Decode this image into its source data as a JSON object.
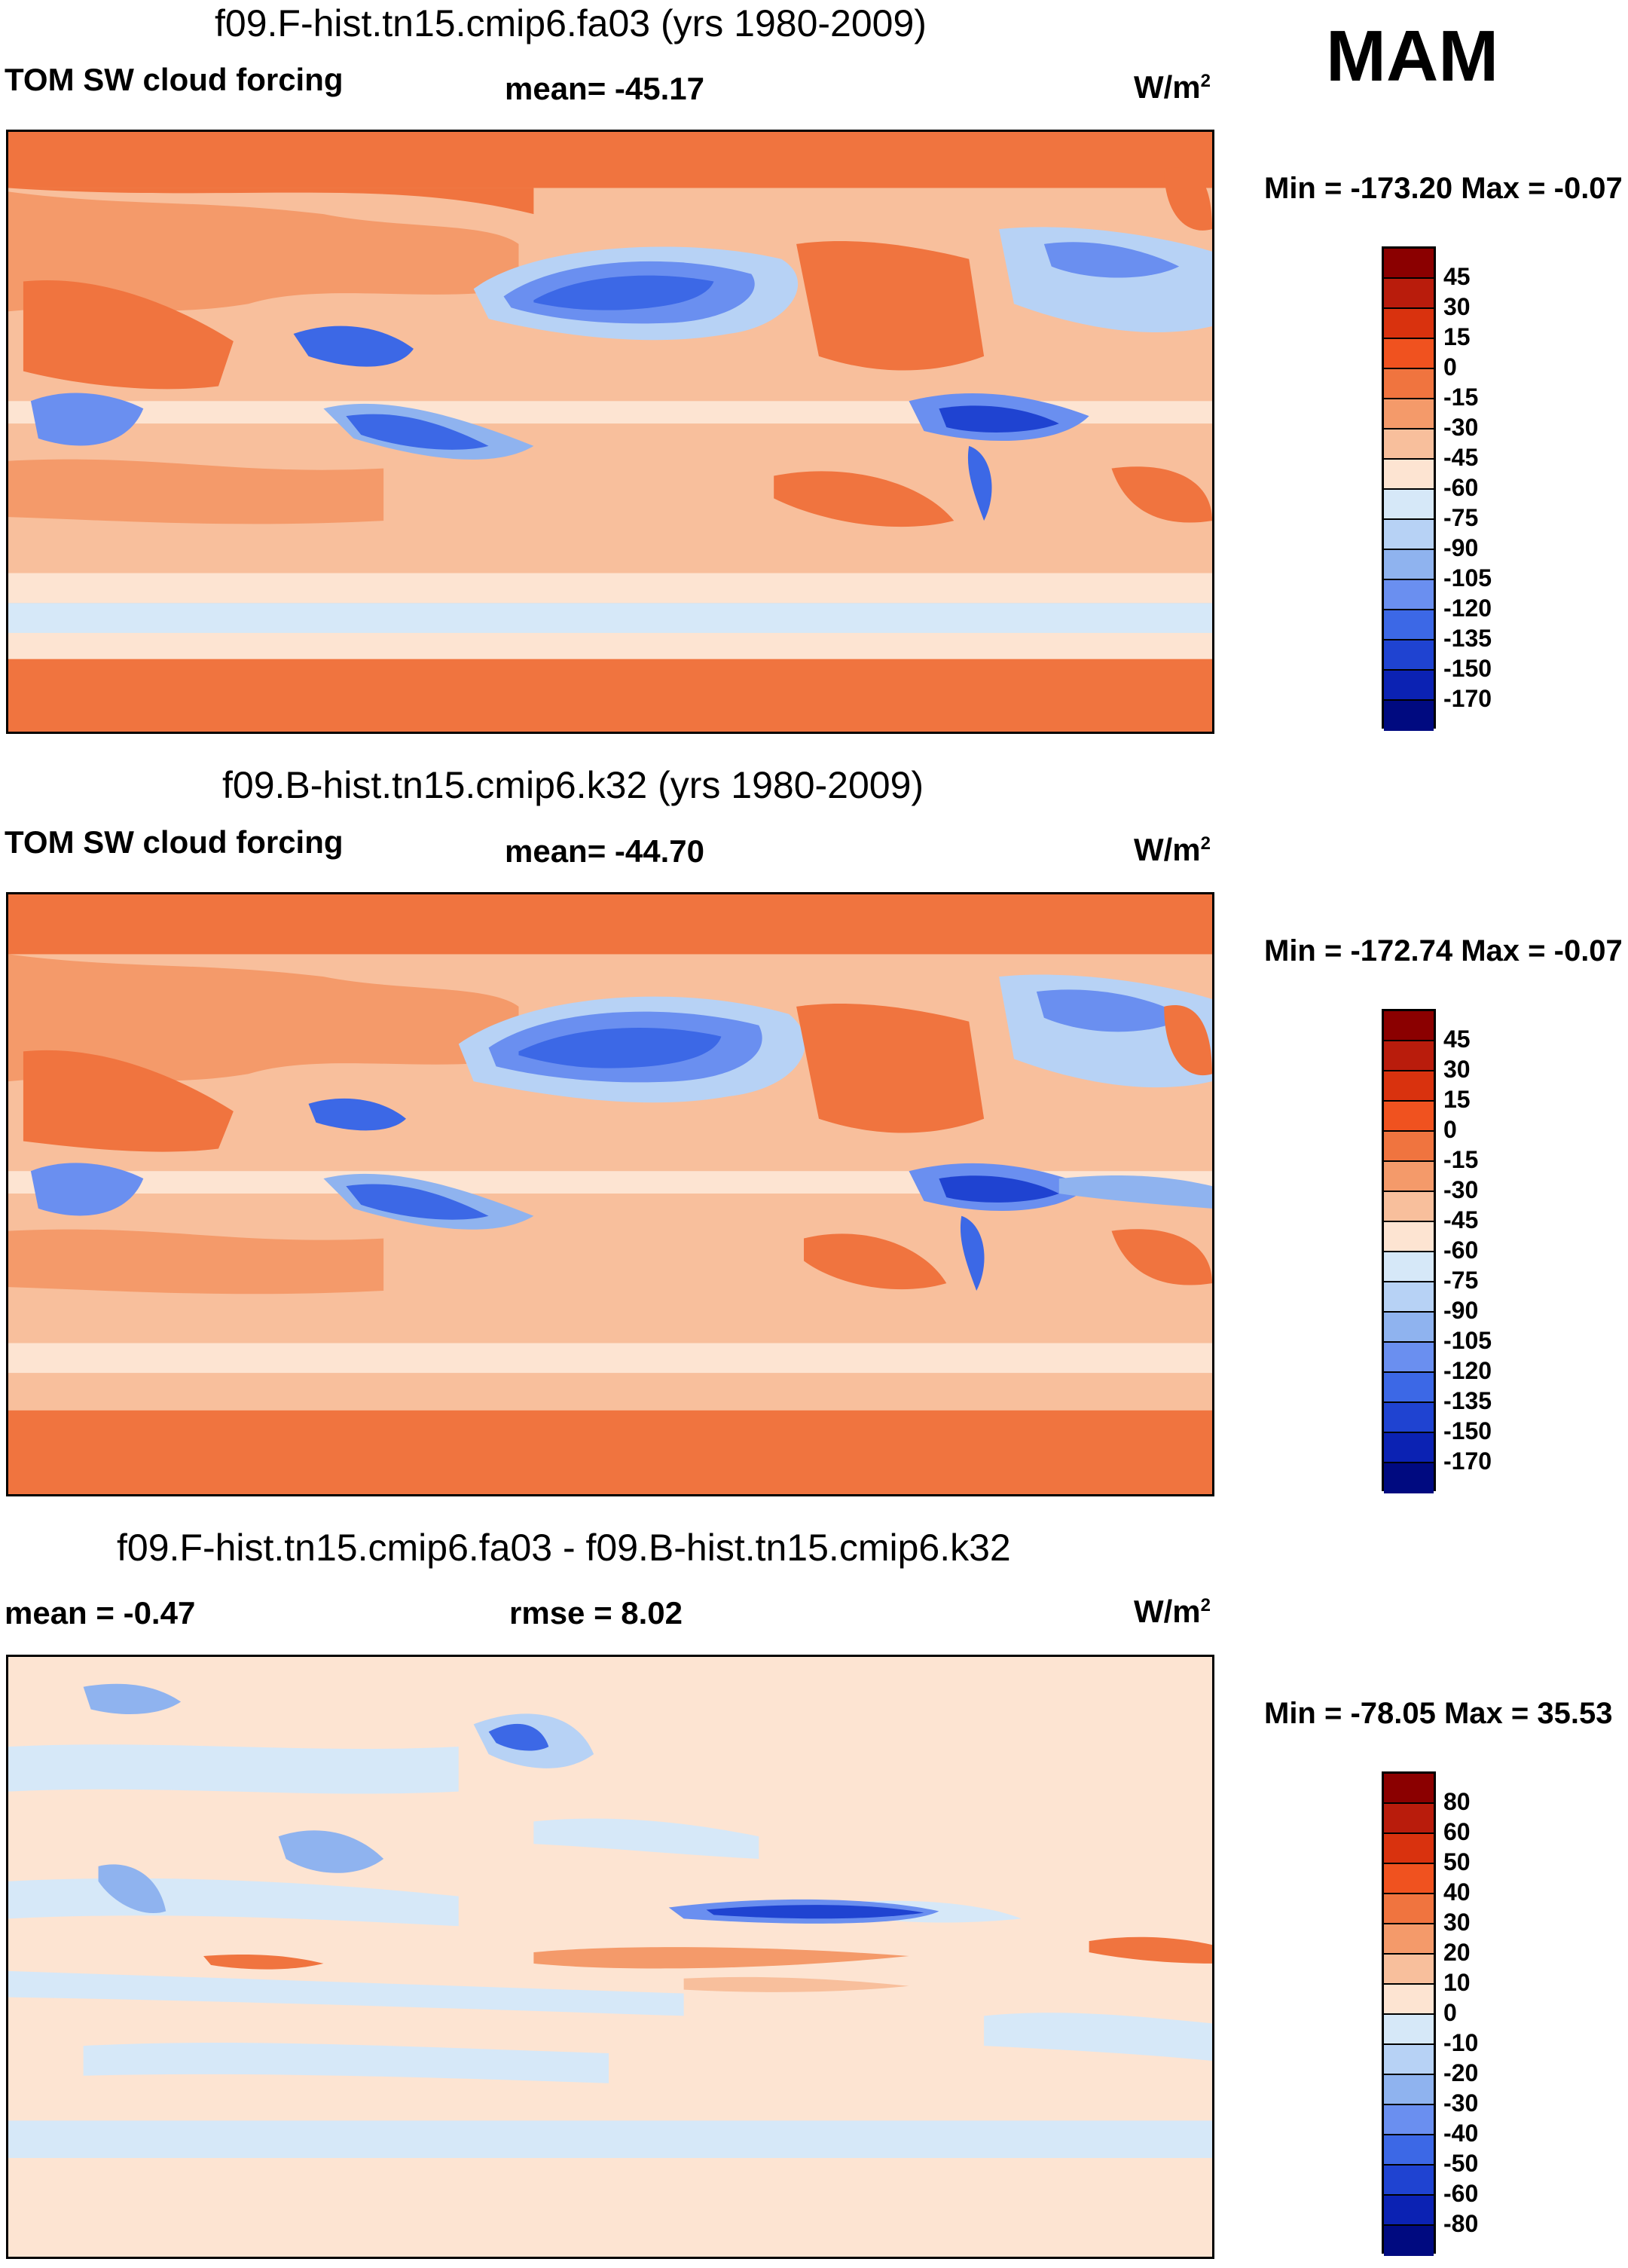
{
  "season": "MAM",
  "panels": [
    {
      "title": "f09.F-hist.tn15.cmip6.fa03 (yrs 1980-2009)",
      "left_label": "TOM SW cloud forcing",
      "center_label": "mean= -45.17",
      "units_base": "W/m",
      "units_exp": "2",
      "minmax": "Min = -173.20 Max =  -0.07",
      "colorbar_labels": [
        "45",
        "30",
        "15",
        "0",
        "-15",
        "-30",
        "-45",
        "-60",
        "-75",
        "-90",
        "-105",
        "-120",
        "-135",
        "-150",
        "-170"
      ],
      "colorbar_colors": [
        "#8b0000",
        "#b91c0c",
        "#d9320e",
        "#f0521f",
        "#f0743f",
        "#f49a6a",
        "#f8bf9c",
        "#fde4d2",
        "#d6e8f8",
        "#b7d2f5",
        "#8fb3ef",
        "#6a8ff0",
        "#3c68e6",
        "#1f43d1",
        "#0b22b3",
        "#000a80"
      ]
    },
    {
      "title": "f09.B-hist.tn15.cmip6.k32 (yrs 1980-2009)",
      "left_label": "TOM SW cloud forcing",
      "center_label": "mean= -44.70",
      "units_base": "W/m",
      "units_exp": "2",
      "minmax": "Min = -172.74 Max =  -0.07",
      "colorbar_labels": [
        "45",
        "30",
        "15",
        "0",
        "-15",
        "-30",
        "-45",
        "-60",
        "-75",
        "-90",
        "-105",
        "-120",
        "-135",
        "-150",
        "-170"
      ],
      "colorbar_colors": [
        "#8b0000",
        "#b91c0c",
        "#d9320e",
        "#f0521f",
        "#f0743f",
        "#f49a6a",
        "#f8bf9c",
        "#fde4d2",
        "#d6e8f8",
        "#b7d2f5",
        "#8fb3ef",
        "#6a8ff0",
        "#3c68e6",
        "#1f43d1",
        "#0b22b3",
        "#000a80"
      ]
    },
    {
      "title": "f09.F-hist.tn15.cmip6.fa03 - f09.B-hist.tn15.cmip6.k32",
      "left_label": "mean =  -0.47",
      "center_label": "rmse =    8.02",
      "units_base": "W/m",
      "units_exp": "2",
      "minmax": "Min = -78.05 Max =  35.53",
      "colorbar_labels": [
        "80",
        "60",
        "50",
        "40",
        "30",
        "20",
        "10",
        "0",
        "-10",
        "-20",
        "-30",
        "-40",
        "-50",
        "-60",
        "-80"
      ],
      "colorbar_colors": [
        "#8b0000",
        "#b91c0c",
        "#d9320e",
        "#f0521f",
        "#f0743f",
        "#f49a6a",
        "#f8bf9c",
        "#fde4d2",
        "#d6e8f8",
        "#b7d2f5",
        "#8fb3ef",
        "#6a8ff0",
        "#3c68e6",
        "#1f43d1",
        "#0b22b3",
        "#000a80"
      ]
    }
  ]
}
